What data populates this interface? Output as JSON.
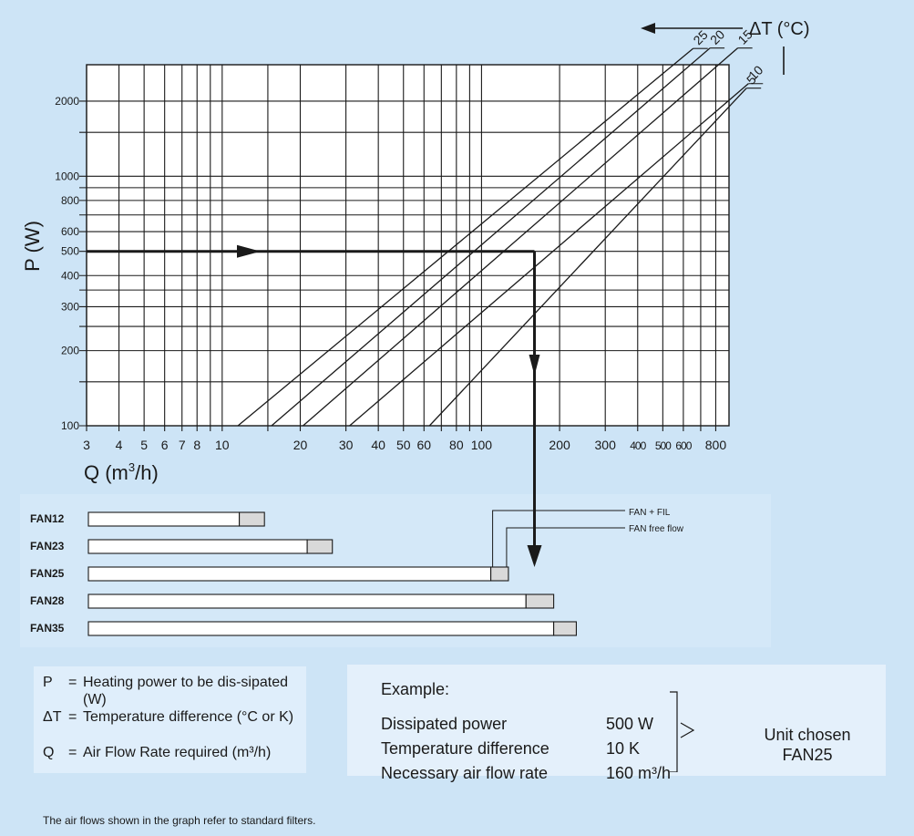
{
  "chart_data": {
    "type": "line",
    "xlabel": "Q (m",
    "xlabel_sup": "3",
    "xlabel_tail": "/h)",
    "ylabel": "P  (W)",
    "x_scale": "log",
    "y_scale": "log",
    "xlim": [
      3,
      900
    ],
    "ylim": [
      100,
      2800
    ],
    "x_tick_labels": [
      3,
      4,
      5,
      6,
      7,
      8,
      10,
      20,
      30,
      40,
      50,
      60,
      80,
      100,
      200,
      300,
      400,
      500,
      600,
      800
    ],
    "y_tick_labels": [
      100,
      200,
      300,
      400,
      500,
      600,
      800,
      1000,
      2000
    ],
    "grid": true,
    "delta_t_label": "ΔT (°C)",
    "series": [
      {
        "name": "25",
        "points": [
          [
            11.5,
            100
          ],
          [
            550,
            2800
          ]
        ]
      },
      {
        "name": "20",
        "points": [
          [
            15.5,
            100
          ],
          [
            640,
            2800
          ]
        ]
      },
      {
        "name": "15",
        "points": [
          [
            20.5,
            100
          ],
          [
            820,
            2800
          ]
        ]
      },
      {
        "name": "10",
        "points": [
          [
            31,
            100
          ],
          [
            1300,
            2800
          ]
        ]
      },
      {
        "name": "5",
        "points": [
          [
            63,
            100
          ],
          [
            900,
            1900
          ]
        ]
      }
    ],
    "example_path": {
      "power": 500,
      "flow": 160
    }
  },
  "fans": {
    "scale_max": 175,
    "items": [
      {
        "name": "FAN12",
        "with_filter": 60,
        "free_flow": 70
      },
      {
        "name": "FAN23",
        "with_filter": 87,
        "free_flow": 97
      },
      {
        "name": "FAN25",
        "with_filter": 160,
        "free_flow": 167
      },
      {
        "name": "FAN28",
        "with_filter": 174,
        "free_flow": 185
      },
      {
        "name": "FAN35",
        "with_filter": 185,
        "free_flow": 194
      }
    ],
    "labels": {
      "fan_fil": "FAN + FIL",
      "free_flow": "FAN free flow"
    },
    "colors": {
      "filter_bar": "#ffffff",
      "free_bar": "#d9d9d9",
      "ink": "#1a1a1a"
    }
  },
  "legend": [
    {
      "symbol": "P",
      "text": "Heating power to be dis-sipated (W)"
    },
    {
      "symbol": "ΔT",
      "text": "Temperature difference (°C or K)"
    },
    {
      "symbol": "Q",
      "text": "Air Flow Rate required (m³/h)"
    }
  ],
  "example": {
    "title": "Example:",
    "rows": [
      {
        "label": "Dissipated power",
        "value": "500 W"
      },
      {
        "label": "Temperature difference",
        "value": "10 K"
      },
      {
        "label": "Necessary air flow rate",
        "value": "160 m³/h"
      }
    ],
    "result_line1": "Unit chosen",
    "result_line2": "FAN25"
  },
  "footnote": "The air flows shown in the graph refer to standard filters."
}
